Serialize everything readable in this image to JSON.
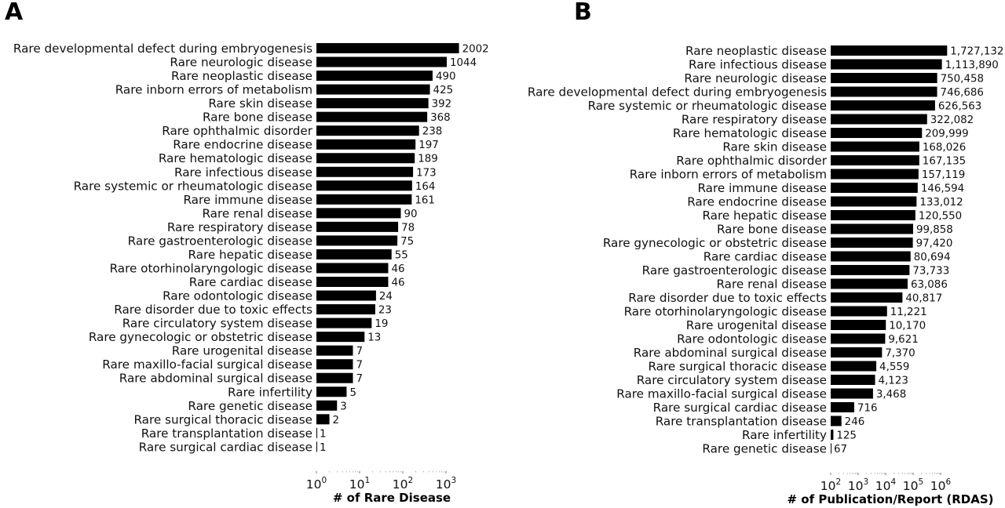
{
  "chart_data": [
    {
      "type": "bar",
      "orientation": "horizontal",
      "panel_label": "A",
      "xscale": "log",
      "xlabel": "# of Rare Disease",
      "xlim": [
        1,
        1000
      ],
      "xticks": [
        1,
        10,
        100,
        1000
      ],
      "categories": [
        "Rare developmental defect during embryogenesis",
        "Rare neurologic disease",
        "Rare neoplastic disease",
        "Rare inborn errors of metabolism",
        "Rare skin disease",
        "Rare bone disease",
        "Rare ophthalmic disorder",
        "Rare endocrine disease",
        "Rare hematologic disease",
        "Rare infectious disease",
        "Rare systemic or rheumatologic disease",
        "Rare immune disease",
        "Rare renal disease",
        "Rare respiratory disease",
        "Rare gastroenterologic disease",
        "Rare hepatic disease",
        "Rare otorhinolaryngologic disease",
        "Rare cardiac disease",
        "Rare odontologic disease",
        "Rare disorder due to toxic effects",
        "Rare circulatory system disease",
        "Rare gynecologic or obstetric disease",
        "Rare urogenital disease",
        "Rare maxillo-facial surgical disease",
        "Rare abdominal surgical disease",
        "Rare infertility",
        "Rare genetic disease",
        "Rare surgical thoracic disease",
        "Rare transplantation disease",
        "Rare surgical cardiac disease"
      ],
      "values": [
        2002,
        1044,
        490,
        425,
        392,
        368,
        238,
        197,
        189,
        173,
        164,
        161,
        90,
        78,
        75,
        55,
        46,
        46,
        24,
        23,
        19,
        13,
        7,
        7,
        7,
        5,
        3,
        2,
        1,
        1
      ],
      "value_labels": [
        "2002",
        "1044",
        "490",
        "425",
        "392",
        "368",
        "238",
        "197",
        "189",
        "173",
        "164",
        "161",
        "90",
        "78",
        "75",
        "55",
        "46",
        "46",
        "24",
        "23",
        "19",
        "13",
        "7",
        "7",
        "7",
        "5",
        "3",
        "2",
        "1",
        "1"
      ],
      "bar_color": "#000000"
    },
    {
      "type": "bar",
      "orientation": "horizontal",
      "panel_label": "B",
      "xscale": "log",
      "xlabel": "# of Publication/Report (RDAS)",
      "xlim": [
        100,
        1000000
      ],
      "xticks": [
        100,
        1000,
        10000,
        100000,
        1000000
      ],
      "categories": [
        "Rare neoplastic disease",
        "Rare infectious disease",
        "Rare neurologic disease",
        "Rare developmental defect during embryogenesis",
        "Rare systemic or rheumatologic disease",
        "Rare respiratory disease",
        "Rare hematologic disease",
        "Rare skin disease",
        "Rare ophthalmic disorder",
        "Rare inborn errors of metabolism",
        "Rare immune disease",
        "Rare endocrine disease",
        "Rare hepatic disease",
        "Rare bone disease",
        "Rare gynecologic or obstetric disease",
        "Rare cardiac disease",
        "Rare gastroenterologic disease",
        "Rare renal disease",
        "Rare disorder due to toxic effects",
        "Rare otorhinolaryngologic disease",
        "Rare urogenital disease",
        "Rare odontologic disease",
        "Rare abdominal surgical disease",
        "Rare surgical thoracic disease",
        "Rare circulatory system disease",
        "Rare maxillo-facial surgical disease",
        "Rare surgical cardiac disease",
        "Rare transplantation disease",
        "Rare infertility",
        "Rare genetic disease"
      ],
      "values": [
        1727132,
        1113890,
        750458,
        746686,
        626563,
        322082,
        209999,
        168026,
        167135,
        157119,
        146594,
        133012,
        120550,
        99858,
        97420,
        80694,
        73733,
        63086,
        40817,
        11221,
        10170,
        9621,
        7370,
        4559,
        4123,
        3468,
        716,
        246,
        125,
        67
      ],
      "value_labels": [
        "1,727,132",
        "1,113,890",
        "750,458",
        "746,686",
        "626,563",
        "322,082",
        "209,999",
        "168,026",
        "167,135",
        "157,119",
        "146,594",
        "133,012",
        "120,550",
        "99,858",
        "97,420",
        "80,694",
        "73,733",
        "63,086",
        "40,817",
        "11,221",
        "10,170",
        "9,621",
        "7,370",
        "4,559",
        "4,123",
        "3,468",
        "716",
        "246",
        "125",
        "67"
      ],
      "bar_color": "#000000"
    }
  ]
}
